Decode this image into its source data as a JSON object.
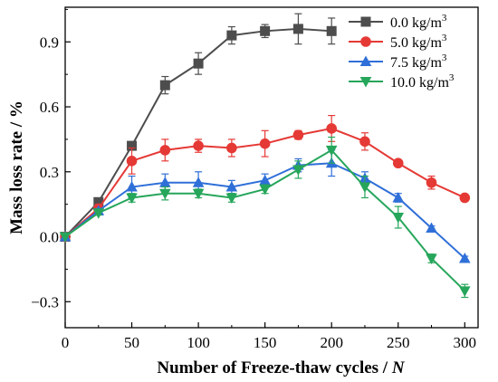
{
  "chart_data": {
    "type": "line",
    "xlabel": "Number of Freeze-thaw cycles / ",
    "xlabel_var": "N",
    "ylabel": "Mass loss rate / %",
    "xlim": [
      0,
      310
    ],
    "ylim": [
      -0.42,
      1.06
    ],
    "x_ticks": [
      0,
      50,
      100,
      150,
      200,
      250,
      300
    ],
    "y_ticks": [
      -0.3,
      0.0,
      0.3,
      0.6,
      0.9
    ],
    "y_tick_labels": [
      "−0.3",
      "0.0",
      "0.3",
      "0.6",
      "0.9"
    ],
    "x": [
      0,
      25,
      50,
      75,
      100,
      125,
      150,
      175,
      200,
      225,
      250,
      275,
      300
    ],
    "grid": false,
    "legend_position": "top-right",
    "series": [
      {
        "name": "0.0 kg/m",
        "name_sup": "3",
        "color": "#4d4d4d",
        "marker": "square",
        "x": [
          0,
          25,
          50,
          75,
          100,
          125,
          150,
          175,
          200
        ],
        "values": [
          0.0,
          0.16,
          0.42,
          0.7,
          0.8,
          0.93,
          0.95,
          0.96,
          0.95
        ],
        "errors": [
          0.0,
          0.01,
          0.01,
          0.04,
          0.05,
          0.04,
          0.03,
          0.07,
          0.06
        ]
      },
      {
        "name": "5.0 kg/m",
        "name_sup": "3",
        "color": "#e53935",
        "marker": "circle",
        "x": [
          0,
          25,
          50,
          75,
          100,
          125,
          150,
          175,
          200,
          225,
          250,
          275,
          300
        ],
        "values": [
          0.0,
          0.13,
          0.35,
          0.4,
          0.42,
          0.41,
          0.43,
          0.47,
          0.5,
          0.44,
          0.34,
          0.25,
          0.18
        ],
        "errors": [
          0.0,
          0.02,
          0.06,
          0.05,
          0.03,
          0.04,
          0.06,
          0.02,
          0.06,
          0.04,
          0.01,
          0.03,
          0.01
        ]
      },
      {
        "name": "7.5 kg/m",
        "name_sup": "3",
        "color": "#2f6fd8",
        "marker": "triangle-up",
        "x": [
          0,
          25,
          50,
          75,
          100,
          125,
          150,
          175,
          200,
          225,
          250,
          275,
          300
        ],
        "values": [
          0.0,
          0.12,
          0.23,
          0.25,
          0.25,
          0.23,
          0.26,
          0.33,
          0.34,
          0.27,
          0.18,
          0.04,
          -0.1
        ],
        "errors": [
          0.0,
          0.01,
          0.05,
          0.04,
          0.05,
          0.03,
          0.03,
          0.03,
          0.06,
          0.03,
          0.02,
          0.01,
          0.01
        ]
      },
      {
        "name": "10.0 kg/m",
        "name_sup": "3",
        "color": "#26a65b",
        "marker": "triangle-down",
        "x": [
          0,
          25,
          50,
          75,
          100,
          125,
          150,
          175,
          200,
          225,
          250,
          275,
          300
        ],
        "values": [
          0.0,
          0.11,
          0.18,
          0.2,
          0.2,
          0.18,
          0.22,
          0.31,
          0.4,
          0.23,
          0.09,
          -0.1,
          -0.25
        ],
        "errors": [
          0.0,
          0.01,
          0.02,
          0.03,
          0.02,
          0.02,
          0.02,
          0.04,
          0.06,
          0.05,
          0.05,
          0.02,
          0.03
        ]
      }
    ]
  }
}
